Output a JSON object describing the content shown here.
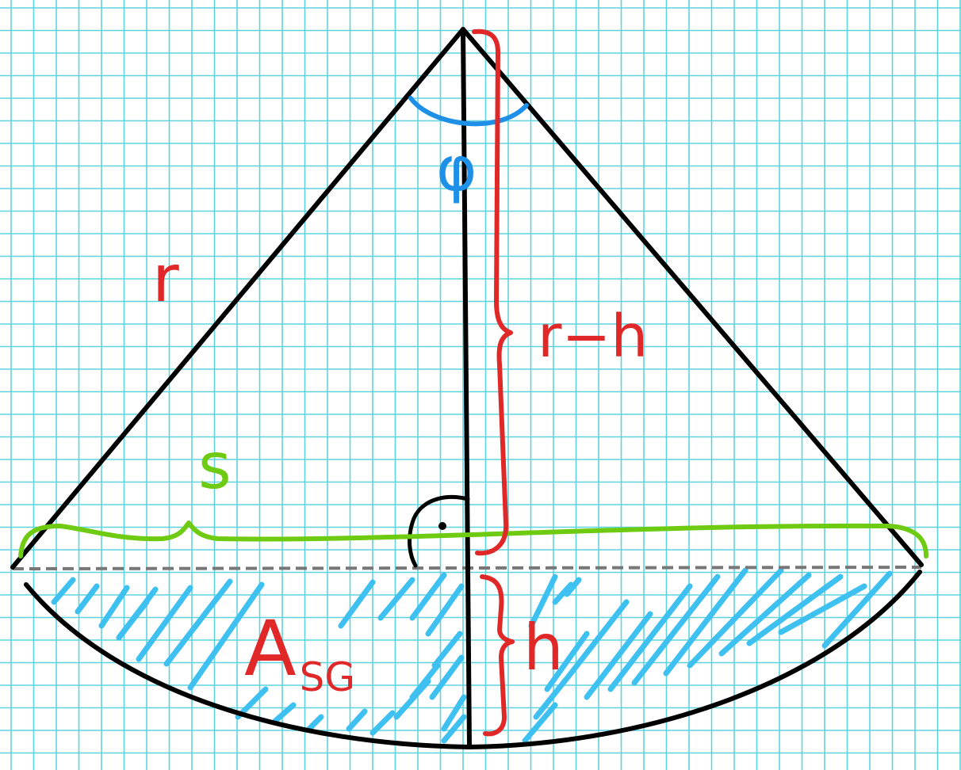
{
  "labels": {
    "radius": "r",
    "angle": "φ",
    "apothem": "r−h",
    "chord": "s",
    "height": "h",
    "area_main": "A",
    "area_sub": "SG"
  },
  "colors": {
    "grid": "#5fd3dd",
    "outline": "#000000",
    "red": "#e02828",
    "green": "#6ecb12",
    "blue": "#1e90e8",
    "hatch": "#3ec0f0",
    "dashed": "#777777"
  }
}
